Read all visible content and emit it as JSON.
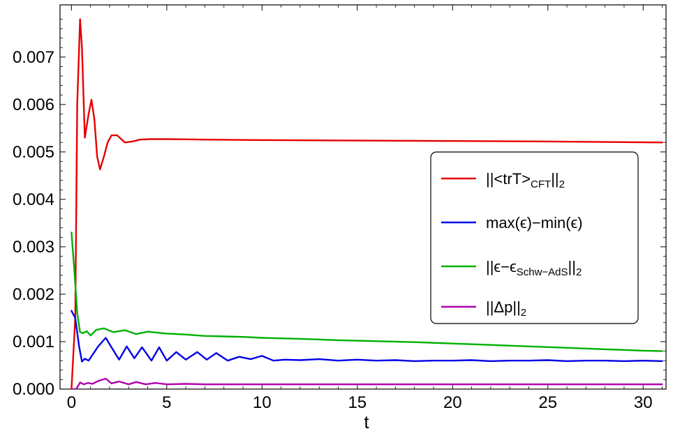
{
  "chart_data": {
    "type": "line",
    "title": "",
    "xlabel": "t",
    "ylabel": "",
    "xlim": [
      -0.6,
      31.2
    ],
    "ylim": [
      0.0,
      0.0081
    ],
    "x_ticks": [
      0,
      5,
      10,
      15,
      20,
      25,
      30
    ],
    "y_ticks": [
      0.0,
      0.001,
      0.002,
      0.003,
      0.004,
      0.005,
      0.006,
      0.007
    ],
    "x_tick_labels": [
      "0",
      "5",
      "10",
      "15",
      "20",
      "25",
      "30"
    ],
    "y_tick_labels": [
      "0.000",
      "0.001",
      "0.002",
      "0.003",
      "0.004",
      "0.005",
      "0.006",
      "0.007"
    ],
    "grid": false,
    "legend_position": "right",
    "series": [
      {
        "name": "||<trT>CFT||2",
        "legend": {
          "main": "||<trT>",
          "sub": "CFT",
          "tail": "||",
          "tail_sub": "2"
        },
        "color": "#e60000",
        "x": [
          0,
          0.2,
          0.3,
          0.45,
          0.55,
          0.7,
          0.9,
          1.05,
          1.2,
          1.35,
          1.5,
          1.7,
          1.9,
          2.1,
          2.4,
          2.8,
          3.2,
          3.6,
          4.2,
          5,
          7,
          10,
          15,
          20,
          25,
          31
        ],
        "y": [
          0.0,
          0.0015,
          0.006,
          0.0078,
          0.0072,
          0.0053,
          0.0058,
          0.0061,
          0.0057,
          0.0049,
          0.00463,
          0.0049,
          0.0052,
          0.00535,
          0.00535,
          0.0052,
          0.00522,
          0.00526,
          0.00527,
          0.00527,
          0.00526,
          0.00525,
          0.00524,
          0.00523,
          0.00522,
          0.0052
        ]
      },
      {
        "name": "max(ϵ)−min(ϵ)",
        "legend": {
          "main": "max(ϵ)−min(ϵ)"
        },
        "color": "#0000e6",
        "x": [
          0,
          0.2,
          0.4,
          0.55,
          0.7,
          0.9,
          1.1,
          1.4,
          1.8,
          2.1,
          2.5,
          2.9,
          3.3,
          3.7,
          4.2,
          4.6,
          5.0,
          5.5,
          6.0,
          6.6,
          7.1,
          7.6,
          8.2,
          8.8,
          9.4,
          10.0,
          10.6,
          11.2,
          12,
          13,
          14,
          15,
          16,
          17,
          18,
          19,
          20,
          21,
          22,
          23,
          24,
          25,
          26,
          27,
          28,
          29,
          30,
          31
        ],
        "y": [
          0.00165,
          0.0015,
          0.0009,
          0.00058,
          0.00064,
          0.0006,
          0.00072,
          0.0009,
          0.00108,
          0.00088,
          0.00062,
          0.0009,
          0.00065,
          0.00088,
          0.0006,
          0.00088,
          0.0006,
          0.00078,
          0.00062,
          0.00078,
          0.00062,
          0.00076,
          0.0006,
          0.00068,
          0.00063,
          0.0007,
          0.0006,
          0.00062,
          0.00061,
          0.00063,
          0.0006,
          0.00062,
          0.0006,
          0.00061,
          0.00059,
          0.0006,
          0.0006,
          0.00061,
          0.00059,
          0.0006,
          0.0006,
          0.00061,
          0.00059,
          0.0006,
          0.0006,
          0.00059,
          0.0006,
          0.00059
        ]
      },
      {
        "name": "||ϵ−ϵSchw−AdS||2",
        "legend": {
          "main": "||ϵ−ϵ",
          "sub": "Schw−AdS",
          "tail": "||",
          "tail_sub": "2"
        },
        "color": "#00b000",
        "x": [
          0,
          0.15,
          0.3,
          0.45,
          0.6,
          0.8,
          1.0,
          1.3,
          1.7,
          2.2,
          2.8,
          3.4,
          4.0,
          5,
          6,
          7,
          8,
          9,
          10,
          12,
          14,
          16,
          18,
          20,
          22,
          24,
          26,
          28,
          30,
          31
        ],
        "y": [
          0.0033,
          0.0025,
          0.0016,
          0.0012,
          0.00118,
          0.00122,
          0.00113,
          0.00125,
          0.00128,
          0.0012,
          0.00124,
          0.00116,
          0.00121,
          0.00117,
          0.00115,
          0.00112,
          0.00111,
          0.0011,
          0.00108,
          0.00106,
          0.00103,
          0.00101,
          0.00099,
          0.00096,
          0.00093,
          0.0009,
          0.00087,
          0.00084,
          0.00081,
          0.0008
        ]
      },
      {
        "name": "||Δp||2",
        "legend": {
          "main": "||Δp||",
          "sub": "2"
        },
        "color": "#b000b0",
        "x": [
          0,
          0.25,
          0.45,
          0.65,
          0.85,
          1.1,
          1.4,
          1.8,
          2.1,
          2.5,
          3.0,
          3.4,
          3.9,
          4.4,
          5,
          6,
          7,
          8,
          10,
          15,
          20,
          25,
          31
        ],
        "y": [
          0.0,
          0.0,
          0.00014,
          0.0001,
          0.00013,
          0.00011,
          0.00017,
          0.00022,
          0.00012,
          0.00016,
          0.0001,
          0.00015,
          0.0001,
          0.00013,
          0.0001,
          0.00011,
          0.0001,
          0.0001,
          0.0001,
          0.0001,
          0.0001,
          0.0001,
          0.0001
        ]
      }
    ]
  }
}
